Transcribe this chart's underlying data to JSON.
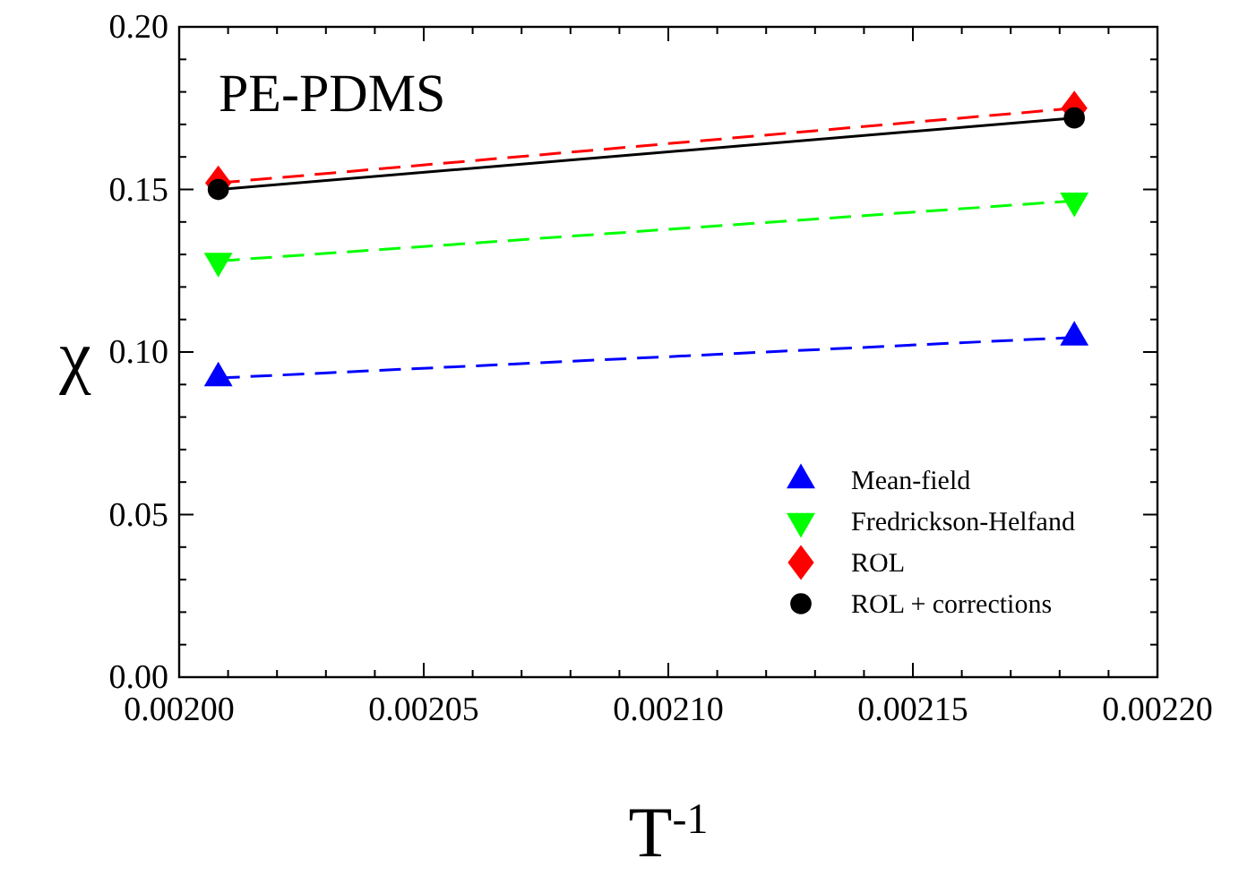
{
  "chart_data": {
    "type": "line",
    "title": "PE-PDMS",
    "xlabel": "T$^{-1}$",
    "ylabel": "χ",
    "xlim": [
      0.002,
      0.0022
    ],
    "ylim": [
      0,
      0.2
    ],
    "xticks": [
      {
        "value": 0.002,
        "label": "0.00200"
      },
      {
        "value": 0.00201,
        "label": null
      },
      {
        "value": 0.00202,
        "label": null
      },
      {
        "value": 0.00203,
        "label": null
      },
      {
        "value": 0.00204,
        "label": null
      },
      {
        "value": 0.00205,
        "label": "0.00205"
      },
      {
        "value": 0.00206,
        "label": null
      },
      {
        "value": 0.00207,
        "label": null
      },
      {
        "value": 0.00208,
        "label": null
      },
      {
        "value": 0.00209,
        "label": null
      },
      {
        "value": 0.0021,
        "label": "0.00210"
      },
      {
        "value": 0.00211,
        "label": null
      },
      {
        "value": 0.00212,
        "label": null
      },
      {
        "value": 0.00213,
        "label": null
      },
      {
        "value": 0.00214,
        "label": null
      },
      {
        "value": 0.00215,
        "label": "0.00215"
      },
      {
        "value": 0.00216,
        "label": null
      },
      {
        "value": 0.00217,
        "label": null
      },
      {
        "value": 0.00218,
        "label": null
      },
      {
        "value": 0.00219,
        "label": null
      },
      {
        "value": 0.0022,
        "label": "0.00220"
      }
    ],
    "yticks": [
      {
        "value": 0,
        "label": "0.00"
      },
      {
        "value": 0.01,
        "label": null
      },
      {
        "value": 0.02,
        "label": null
      },
      {
        "value": 0.03,
        "label": null
      },
      {
        "value": 0.04,
        "label": null
      },
      {
        "value": 0.05,
        "label": "0.05"
      },
      {
        "value": 0.06,
        "label": null
      },
      {
        "value": 0.07,
        "label": null
      },
      {
        "value": 0.08,
        "label": null
      },
      {
        "value": 0.09,
        "label": null
      },
      {
        "value": 0.1,
        "label": "0.10"
      },
      {
        "value": 0.11,
        "label": null
      },
      {
        "value": 0.12,
        "label": null
      },
      {
        "value": 0.13,
        "label": null
      },
      {
        "value": 0.14,
        "label": null
      },
      {
        "value": 0.15,
        "label": "0.15"
      },
      {
        "value": 0.16,
        "label": null
      },
      {
        "value": 0.17,
        "label": null
      },
      {
        "value": 0.18,
        "label": null
      },
      {
        "value": 0.19,
        "label": null
      },
      {
        "value": 0.2,
        "label": "0.20"
      }
    ],
    "x": [
      0.002008,
      0.002183
    ],
    "legend": "bottom right",
    "grid": false,
    "series": [
      {
        "name": "Mean-field",
        "color": "#0000ff",
        "marker": "triangle",
        "line_style": "dashed",
        "values": [
          0.092,
          0.1045
        ]
      },
      {
        "name": "Fredrickson-Helfand",
        "color": "#00ff00",
        "marker": "triangle-down",
        "line_style": "dashed",
        "values": [
          0.128,
          0.1465
        ]
      },
      {
        "name": "ROL",
        "color": "#ff0000",
        "marker": "diamond",
        "line_style": "dashed",
        "values": [
          0.152,
          0.175
        ]
      },
      {
        "name": "ROL + corrections",
        "color": "#000000",
        "marker": "circle",
        "line_style": "solid",
        "values": [
          0.15,
          0.172
        ]
      }
    ]
  }
}
